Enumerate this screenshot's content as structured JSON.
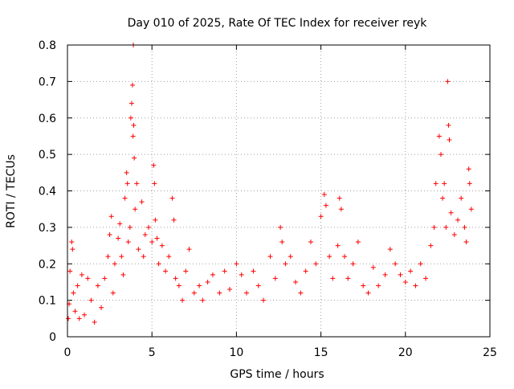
{
  "chart_data": {
    "type": "scatter",
    "title": "Day 010 of 2025, Rate Of TEC Index for receiver reyk",
    "xlabel": "GPS time / hours",
    "ylabel": "ROTI / TECUs",
    "xlim": [
      0,
      25
    ],
    "ylim": [
      0,
      0.8
    ],
    "xticks": [
      0,
      5,
      10,
      15,
      20,
      25
    ],
    "xtick_labels": [
      "0",
      "5",
      "10",
      "15",
      "20",
      "25"
    ],
    "yticks": [
      0,
      0.1,
      0.2,
      0.3,
      0.4,
      0.5,
      0.6,
      0.7,
      0.8
    ],
    "ytick_labels": [
      "0",
      "0.1",
      "0.2",
      "0.3",
      "0.4",
      "0.5",
      "0.6",
      "0.7",
      "0.8"
    ],
    "grid": true,
    "marker": "plus",
    "color": "#ff0000",
    "series": [
      {
        "name": "ROTI",
        "points": [
          [
            0.05,
            0.05
          ],
          [
            0.1,
            0.09
          ],
          [
            0.15,
            0.18
          ],
          [
            0.25,
            0.26
          ],
          [
            0.3,
            0.24
          ],
          [
            0.35,
            0.12
          ],
          [
            0.45,
            0.07
          ],
          [
            0.6,
            0.14
          ],
          [
            0.7,
            0.05
          ],
          [
            0.85,
            0.17
          ],
          [
            1.0,
            0.06
          ],
          [
            1.2,
            0.16
          ],
          [
            1.4,
            0.1
          ],
          [
            1.6,
            0.04
          ],
          [
            1.8,
            0.14
          ],
          [
            2.0,
            0.08
          ],
          [
            2.2,
            0.16
          ],
          [
            2.4,
            0.22
          ],
          [
            2.5,
            0.28
          ],
          [
            2.6,
            0.33
          ],
          [
            2.7,
            0.12
          ],
          [
            2.8,
            0.2
          ],
          [
            3.0,
            0.27
          ],
          [
            3.1,
            0.31
          ],
          [
            3.2,
            0.22
          ],
          [
            3.3,
            0.17
          ],
          [
            3.4,
            0.38
          ],
          [
            3.5,
            0.45
          ],
          [
            3.55,
            0.42
          ],
          [
            3.6,
            0.26
          ],
          [
            3.7,
            0.3
          ],
          [
            3.75,
            0.6
          ],
          [
            3.8,
            0.64
          ],
          [
            3.85,
            0.69
          ],
          [
            3.88,
            0.55
          ],
          [
            3.9,
            0.8
          ],
          [
            3.92,
            0.58
          ],
          [
            3.95,
            0.49
          ],
          [
            4.0,
            0.35
          ],
          [
            4.1,
            0.42
          ],
          [
            4.2,
            0.24
          ],
          [
            4.4,
            0.37
          ],
          [
            4.5,
            0.22
          ],
          [
            4.6,
            0.28
          ],
          [
            4.8,
            0.3
          ],
          [
            5.0,
            0.26
          ],
          [
            5.1,
            0.47
          ],
          [
            5.15,
            0.42
          ],
          [
            5.2,
            0.32
          ],
          [
            5.3,
            0.27
          ],
          [
            5.4,
            0.2
          ],
          [
            5.6,
            0.25
          ],
          [
            5.8,
            0.18
          ],
          [
            6.0,
            0.22
          ],
          [
            6.2,
            0.38
          ],
          [
            6.3,
            0.32
          ],
          [
            6.4,
            0.16
          ],
          [
            6.6,
            0.14
          ],
          [
            6.8,
            0.1
          ],
          [
            7.0,
            0.18
          ],
          [
            7.2,
            0.24
          ],
          [
            7.5,
            0.12
          ],
          [
            7.8,
            0.14
          ],
          [
            8.0,
            0.1
          ],
          [
            8.3,
            0.15
          ],
          [
            8.6,
            0.17
          ],
          [
            9.0,
            0.12
          ],
          [
            9.3,
            0.18
          ],
          [
            9.6,
            0.13
          ],
          [
            10.0,
            0.2
          ],
          [
            10.3,
            0.17
          ],
          [
            10.6,
            0.12
          ],
          [
            11.0,
            0.18
          ],
          [
            11.3,
            0.14
          ],
          [
            11.6,
            0.1
          ],
          [
            12.0,
            0.22
          ],
          [
            12.3,
            0.16
          ],
          [
            12.6,
            0.3
          ],
          [
            12.7,
            0.26
          ],
          [
            12.9,
            0.2
          ],
          [
            13.2,
            0.22
          ],
          [
            13.5,
            0.15
          ],
          [
            13.8,
            0.12
          ],
          [
            14.1,
            0.18
          ],
          [
            14.4,
            0.26
          ],
          [
            14.7,
            0.2
          ],
          [
            15.0,
            0.33
          ],
          [
            15.2,
            0.39
          ],
          [
            15.3,
            0.36
          ],
          [
            15.5,
            0.22
          ],
          [
            15.7,
            0.16
          ],
          [
            16.0,
            0.25
          ],
          [
            16.1,
            0.38
          ],
          [
            16.2,
            0.35
          ],
          [
            16.4,
            0.22
          ],
          [
            16.6,
            0.16
          ],
          [
            16.9,
            0.2
          ],
          [
            17.2,
            0.26
          ],
          [
            17.5,
            0.14
          ],
          [
            17.8,
            0.12
          ],
          [
            18.1,
            0.19
          ],
          [
            18.4,
            0.14
          ],
          [
            18.8,
            0.17
          ],
          [
            19.1,
            0.24
          ],
          [
            19.4,
            0.2
          ],
          [
            19.7,
            0.17
          ],
          [
            20.0,
            0.15
          ],
          [
            20.3,
            0.18
          ],
          [
            20.6,
            0.14
          ],
          [
            20.9,
            0.2
          ],
          [
            21.2,
            0.16
          ],
          [
            21.5,
            0.25
          ],
          [
            21.7,
            0.3
          ],
          [
            21.8,
            0.42
          ],
          [
            22.0,
            0.55
          ],
          [
            22.1,
            0.5
          ],
          [
            22.2,
            0.38
          ],
          [
            22.3,
            0.42
          ],
          [
            22.4,
            0.3
          ],
          [
            22.5,
            0.7
          ],
          [
            22.55,
            0.58
          ],
          [
            22.6,
            0.54
          ],
          [
            22.7,
            0.34
          ],
          [
            22.9,
            0.28
          ],
          [
            23.1,
            0.32
          ],
          [
            23.3,
            0.38
          ],
          [
            23.5,
            0.3
          ],
          [
            23.6,
            0.26
          ],
          [
            23.75,
            0.46
          ],
          [
            23.8,
            0.42
          ],
          [
            23.9,
            0.35
          ]
        ]
      }
    ]
  }
}
